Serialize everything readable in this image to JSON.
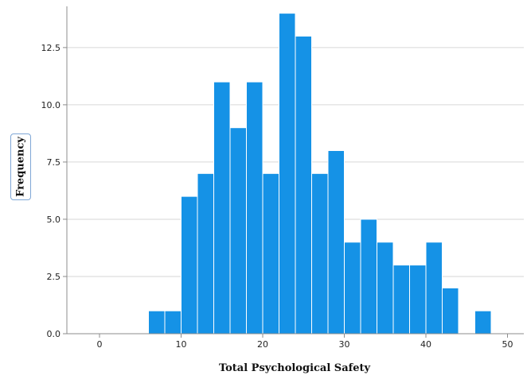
{
  "chart_data": {
    "type": "bar",
    "title": "",
    "xlabel": "Total Psychological Safety",
    "ylabel": "Frequency",
    "bin_width": 2,
    "bin_starts": [
      6,
      8,
      10,
      12,
      14,
      16,
      18,
      20,
      22,
      24,
      26,
      28,
      30,
      32,
      34,
      36,
      38,
      40,
      42,
      44,
      46
    ],
    "values": [
      1,
      1,
      6,
      7,
      11,
      9,
      11,
      7,
      14,
      13,
      7,
      8,
      4,
      5,
      4,
      3,
      3,
      4,
      2,
      0,
      1
    ],
    "xlim": [
      -4,
      52
    ],
    "ylim": [
      0,
      14.3
    ],
    "x_ticks": [
      "0",
      "10",
      "20",
      "30",
      "40",
      "50"
    ],
    "y_ticks": [
      "0.0",
      "2.5",
      "5.0",
      "7.5",
      "10.0",
      "12.5"
    ],
    "grid": "horizontal",
    "bar_color": "#1592e6",
    "bar_edge_color": "#ffffff",
    "grid_color": "#d6d6d6",
    "axis_color": "#8c8c8c"
  }
}
